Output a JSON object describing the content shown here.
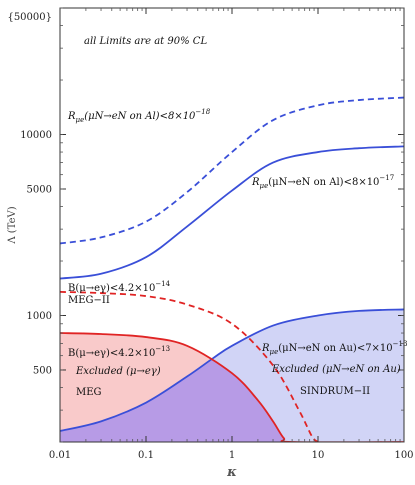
{
  "chart_data": {
    "type": "line",
    "x_scale": "log",
    "y_scale": "log",
    "xlim": [
      0.01,
      100
    ],
    "ylim": [
      200,
      50000
    ],
    "xlabel": "κ",
    "ylabel": "Λ (TeV)",
    "top_tick_label": "{50000}",
    "x_ticks": [
      {
        "value": 0.01,
        "label": "0.01"
      },
      {
        "value": 0.1,
        "label": "0.1"
      },
      {
        "value": 1,
        "label": "1"
      },
      {
        "value": 10,
        "label": "10"
      },
      {
        "value": 100,
        "label": "100"
      }
    ],
    "y_ticks": [
      {
        "value": 500,
        "label": "500"
      },
      {
        "value": 1000,
        "label": "1000"
      },
      {
        "value": 5000,
        "label": "5000"
      },
      {
        "value": 10000,
        "label": "10000"
      }
    ],
    "annotation_cl": "all Limits are at 90% CL",
    "series": [
      {
        "key": "al_future",
        "style": "dashed",
        "color": "#3a4fd8",
        "x": [
          0.01,
          0.03,
          0.1,
          0.3,
          1,
          3,
          10,
          30,
          100
        ],
        "y": [
          2500,
          2700,
          3300,
          4800,
          8000,
          12000,
          14500,
          15500,
          16000
        ]
      },
      {
        "key": "al_present",
        "style": "solid",
        "color": "#3a4fd8",
        "x": [
          0.01,
          0.03,
          0.1,
          0.3,
          1,
          3,
          10,
          30,
          100
        ],
        "y": [
          1600,
          1700,
          2100,
          3100,
          4900,
          7000,
          8000,
          8400,
          8600
        ]
      },
      {
        "key": "au_sindrum",
        "style": "solid",
        "color": "#3a4fd8",
        "fill": "#c9cdf5",
        "x": [
          0.01,
          0.03,
          0.1,
          0.3,
          0.6,
          1,
          3,
          10,
          30,
          100
        ],
        "y": [
          230,
          260,
          330,
          460,
          580,
          680,
          880,
          1000,
          1060,
          1080
        ]
      },
      {
        "key": "meg",
        "style": "solid",
        "color": "#e02424",
        "fill": "#f8c4c4",
        "x": [
          0.01,
          0.03,
          0.1,
          0.3,
          1,
          2,
          3,
          4,
          5,
          100
        ],
        "y": [
          800,
          790,
          760,
          680,
          480,
          340,
          260,
          210,
          200,
          200
        ]
      },
      {
        "key": "meg2",
        "style": "dashed",
        "color": "#e02424",
        "x": [
          0.01,
          0.03,
          0.1,
          0.3,
          1,
          3,
          6,
          8.5,
          10
        ],
        "y": [
          1350,
          1330,
          1280,
          1150,
          900,
          530,
          300,
          215,
          200
        ]
      }
    ],
    "labels": {
      "al_future": "Rμe(μN→eN on Al)<8×10−18",
      "al_present": "Rμe(μN→eN on Al)<8×10−17",
      "meg2_limit": "B(μ→eγ)<4.2×10−14",
      "meg2_name": "MEG−II",
      "meg_limit": "B(μ→eγ)<4.2×10−13",
      "meg_excluded": "Excluded (μ→eγ)",
      "meg_name": "MEG",
      "au_limit": "Rμe(μN→eN on Au)<7×10−13",
      "au_excluded": "Excluded (μN→eN on Au)",
      "sindrum_name": "SINDRUM−II"
    }
  }
}
